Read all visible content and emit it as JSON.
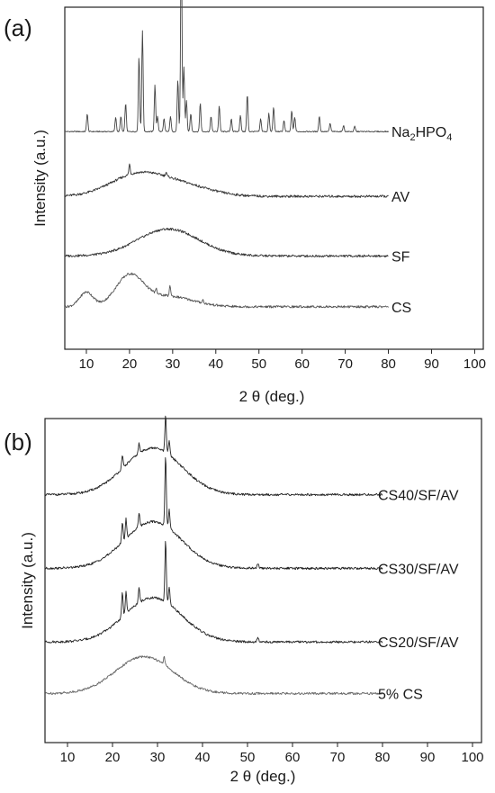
{
  "chart_data": [
    {
      "type": "line",
      "panel_label": "(a)",
      "xlabel": "2 θ (deg.)",
      "ylabel": "Intensity (a.u.)",
      "xlim": [
        5,
        102
      ],
      "ylim": [
        0,
        6.6
      ],
      "xticks": [
        10,
        20,
        30,
        40,
        50,
        60,
        70,
        80,
        90,
        100
      ],
      "yticks_shown": false,
      "legend": "labels at right end of each trace",
      "series": [
        {
          "name": "Na₂HPO₄",
          "label_main": "Na",
          "label_sub1": "2",
          "label_mid": "HPO",
          "label_sub2": "4",
          "color": "#444444",
          "baseline": 4.2,
          "hump": [],
          "peaks": [
            {
              "x": 10.2,
              "h": 0.35
            },
            {
              "x": 16.8,
              "h": 0.28
            },
            {
              "x": 18.0,
              "h": 0.3
            },
            {
              "x": 19.1,
              "h": 0.55
            },
            {
              "x": 22.2,
              "h": 1.45
            },
            {
              "x": 23.0,
              "h": 1.95
            },
            {
              "x": 25.9,
              "h": 0.9
            },
            {
              "x": 26.5,
              "h": 0.3
            },
            {
              "x": 28.0,
              "h": 0.25
            },
            {
              "x": 29.5,
              "h": 0.3
            },
            {
              "x": 31.2,
              "h": 1.0
            },
            {
              "x": 32.0,
              "h": 3.9
            },
            {
              "x": 32.6,
              "h": 1.25
            },
            {
              "x": 33.2,
              "h": 0.6
            },
            {
              "x": 34.2,
              "h": 0.35
            },
            {
              "x": 36.4,
              "h": 0.55
            },
            {
              "x": 38.9,
              "h": 0.3
            },
            {
              "x": 40.8,
              "h": 0.5
            },
            {
              "x": 43.6,
              "h": 0.25
            },
            {
              "x": 45.7,
              "h": 0.32
            },
            {
              "x": 47.3,
              "h": 0.72
            },
            {
              "x": 50.4,
              "h": 0.25
            },
            {
              "x": 52.3,
              "h": 0.35
            },
            {
              "x": 53.4,
              "h": 0.48
            },
            {
              "x": 55.8,
              "h": 0.22
            },
            {
              "x": 57.6,
              "h": 0.4
            },
            {
              "x": 58.3,
              "h": 0.28
            },
            {
              "x": 64.0,
              "h": 0.3
            },
            {
              "x": 66.5,
              "h": 0.16
            },
            {
              "x": 69.6,
              "h": 0.12
            },
            {
              "x": 72.2,
              "h": 0.1
            }
          ]
        },
        {
          "name": "AV",
          "color": "#333333",
          "baseline": 2.95,
          "hump": [
            {
              "center": 22,
              "width": 9,
              "height": 0.42
            },
            {
              "center": 33,
              "width": 9,
              "height": 0.18
            }
          ],
          "peaks": [
            {
              "x": 20.0,
              "h": 0.2
            },
            {
              "x": 28.5,
              "h": 0.08
            }
          ]
        },
        {
          "name": "SF",
          "color": "#333333",
          "baseline": 1.8,
          "hump": [
            {
              "center": 29,
              "width": 10,
              "height": 0.52
            }
          ],
          "peaks": []
        },
        {
          "name": "CS",
          "color": "#555555",
          "baseline": 0.82,
          "hump": [
            {
              "center": 10,
              "width": 2.2,
              "height": 0.28
            },
            {
              "center": 20,
              "width": 4.5,
              "height": 0.58
            },
            {
              "center": 29,
              "width": 8,
              "height": 0.2
            }
          ],
          "peaks": [
            {
              "x": 29.4,
              "h": 0.2
            },
            {
              "x": 26.2,
              "h": 0.08
            },
            {
              "x": 37.0,
              "h": 0.06
            }
          ]
        }
      ]
    },
    {
      "type": "line",
      "panel_label": "(b)",
      "xlabel": "2 θ (deg.)",
      "ylabel": "Intensity (a.u.)",
      "xlim": [
        5,
        102
      ],
      "ylim": [
        0,
        6.6
      ],
      "xticks": [
        10,
        20,
        30,
        40,
        50,
        60,
        70,
        80,
        90,
        100
      ],
      "yticks_shown": false,
      "legend": "labels at right end of each trace",
      "series": [
        {
          "name": "CS40/SF/AV",
          "color": "#222222",
          "baseline": 5.05,
          "hump": [
            {
              "center": 29,
              "width": 9,
              "height": 0.95
            }
          ],
          "peaks": [
            {
              "x": 22.2,
              "h": 0.25
            },
            {
              "x": 25.9,
              "h": 0.2
            },
            {
              "x": 31.8,
              "h": 0.75
            },
            {
              "x": 32.6,
              "h": 0.3
            }
          ]
        },
        {
          "name": "CS30/SF/AV",
          "color": "#222222",
          "baseline": 3.55,
          "hump": [
            {
              "center": 29,
              "width": 9,
              "height": 0.95
            }
          ],
          "peaks": [
            {
              "x": 22.2,
              "h": 0.4
            },
            {
              "x": 23.0,
              "h": 0.4
            },
            {
              "x": 25.9,
              "h": 0.3
            },
            {
              "x": 31.8,
              "h": 1.45
            },
            {
              "x": 32.6,
              "h": 0.4
            },
            {
              "x": 52.3,
              "h": 0.1
            }
          ]
        },
        {
          "name": "CS20/SF/AV",
          "color": "#222222",
          "baseline": 2.05,
          "hump": [
            {
              "center": 29,
              "width": 9,
              "height": 0.9
            }
          ],
          "peaks": [
            {
              "x": 22.2,
              "h": 0.5
            },
            {
              "x": 23.0,
              "h": 0.45
            },
            {
              "x": 25.9,
              "h": 0.3
            },
            {
              "x": 31.8,
              "h": 1.25
            },
            {
              "x": 32.6,
              "h": 0.35
            },
            {
              "x": 52.3,
              "h": 0.1
            }
          ]
        },
        {
          "name": "5% CS",
          "color": "#666666",
          "baseline": 1.0,
          "hump": [
            {
              "center": 27,
              "width": 9,
              "height": 0.75
            }
          ],
          "peaks": [
            {
              "x": 31.5,
              "h": 0.18
            }
          ]
        }
      ]
    }
  ]
}
